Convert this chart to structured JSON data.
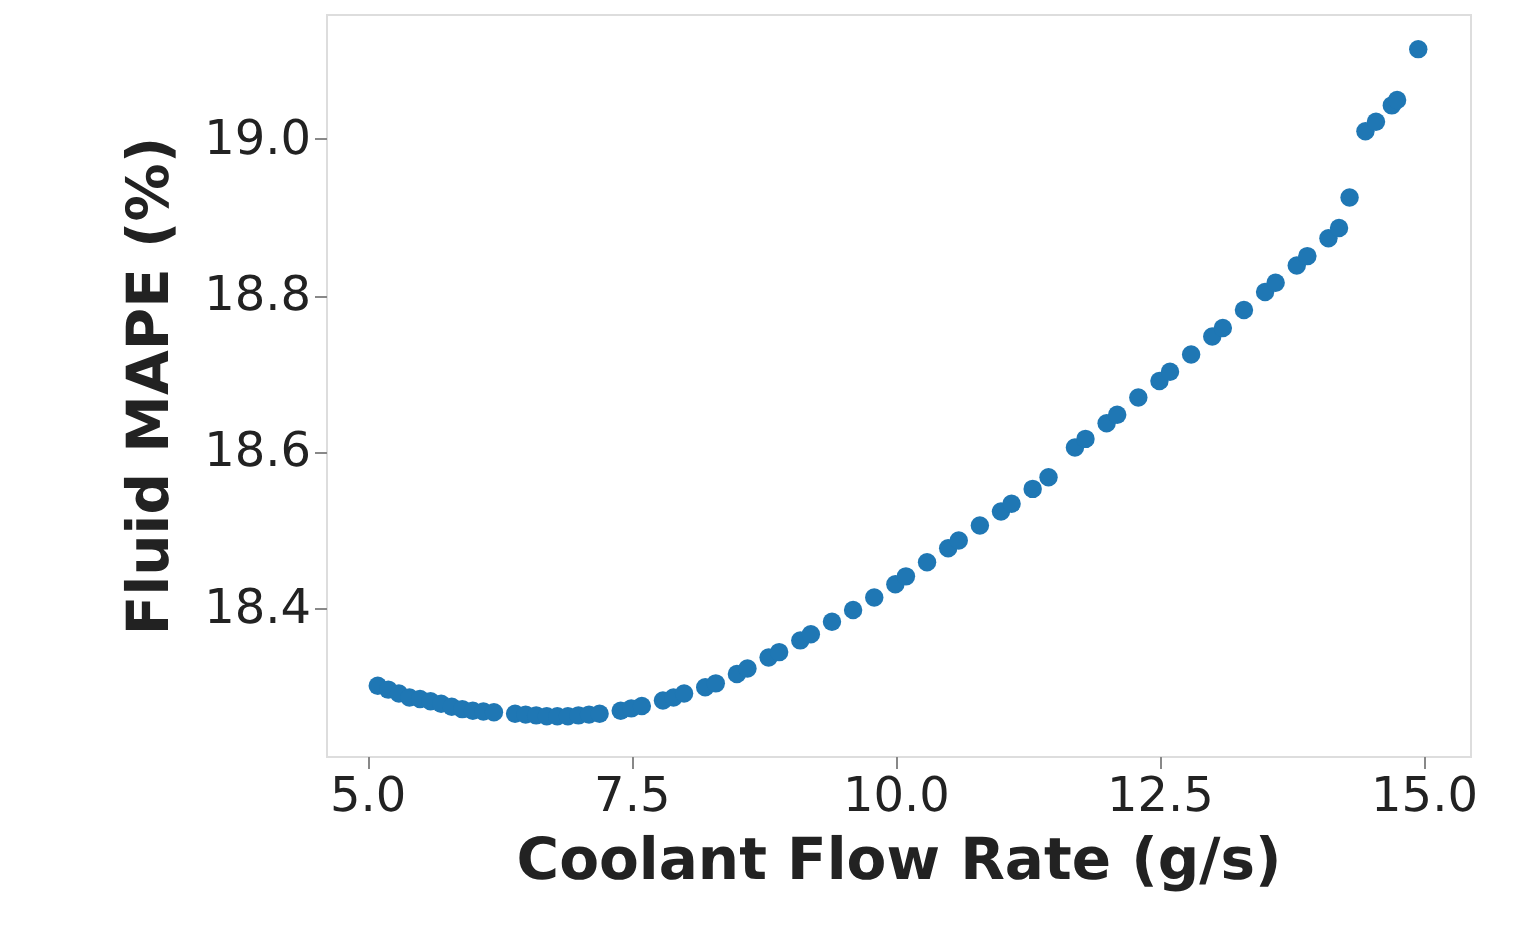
{
  "chart_data": {
    "type": "scatter",
    "xlabel": "Coolant Flow Rate (g/s)",
    "ylabel": "Fluid MAPE (%)",
    "xlim": [
      4.61,
      15.44
    ],
    "ylim": [
      18.21,
      19.16
    ],
    "xticks": [
      {
        "value": 5,
        "label": "5.0"
      },
      7.5,
      {
        "value": 10,
        "label": "10.0"
      },
      12.5,
      {
        "value": 15,
        "label": "15.0"
      }
    ],
    "yticks": [
      18.4,
      18.6,
      18.8,
      {
        "value": 19,
        "label": "19.0"
      }
    ],
    "grid": false,
    "marker": "circle",
    "series": [
      {
        "color": "#1f77b4",
        "x": [
          5.1,
          5.2,
          5.3,
          5.4,
          5.5,
          5.6,
          5.7,
          5.8,
          5.9,
          6.0,
          6.1,
          6.2,
          6.4,
          6.5,
          6.6,
          6.7,
          6.8,
          6.9,
          7.0,
          7.1,
          7.2,
          7.4,
          7.5,
          7.6,
          7.8,
          7.9,
          8.0,
          8.2,
          8.3,
          8.5,
          8.6,
          8.8,
          8.9,
          9.1,
          9.2,
          9.4,
          9.6,
          9.8,
          10.0,
          10.1,
          10.3,
          10.5,
          10.6,
          10.8,
          11.0,
          11.1,
          11.3,
          11.45,
          11.7,
          11.8,
          12.0,
          12.1,
          12.3,
          12.5,
          12.6,
          12.8,
          13.0,
          13.1,
          13.3,
          13.5,
          13.6,
          13.8,
          13.9,
          14.1,
          14.2,
          14.3,
          14.45,
          14.55,
          14.7,
          14.75,
          14.95
        ],
        "values": [
          18.3,
          18.295,
          18.29,
          18.285,
          18.283,
          18.28,
          18.277,
          18.273,
          18.27,
          18.268,
          18.267,
          18.266,
          18.264,
          18.263,
          18.262,
          18.261,
          18.261,
          18.261,
          18.262,
          18.263,
          18.264,
          18.268,
          18.271,
          18.274,
          18.281,
          18.285,
          18.29,
          18.298,
          18.303,
          18.315,
          18.322,
          18.336,
          18.343,
          18.358,
          18.366,
          18.382,
          18.397,
          18.413,
          18.43,
          18.44,
          18.458,
          18.476,
          18.486,
          18.505,
          18.523,
          18.533,
          18.552,
          18.567,
          18.605,
          18.616,
          18.636,
          18.647,
          18.669,
          18.69,
          18.702,
          18.724,
          18.747,
          18.758,
          18.781,
          18.804,
          18.816,
          18.838,
          18.85,
          18.873,
          18.886,
          18.925,
          19.01,
          19.022,
          19.043,
          19.05,
          19.115
        ]
      }
    ]
  }
}
